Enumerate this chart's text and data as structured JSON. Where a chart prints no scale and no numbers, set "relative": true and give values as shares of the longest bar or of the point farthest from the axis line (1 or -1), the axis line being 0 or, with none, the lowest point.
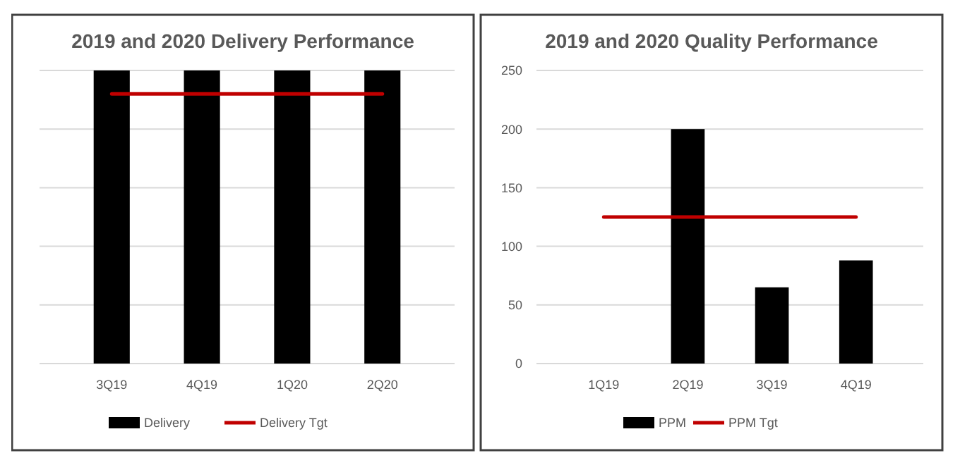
{
  "chart_data": [
    {
      "type": "bar",
      "title": "2019 and 2020 Delivery Performance",
      "categories": [
        "3Q19",
        "4Q19",
        "1Q20",
        "2Q20"
      ],
      "relative": true,
      "grid": true,
      "legend": "bottom",
      "series": [
        {
          "name": "Delivery",
          "color": "#000000",
          "values": [
            1,
            1,
            1,
            1
          ]
        },
        {
          "name": "Delivery Tgt",
          "type": "line",
          "color": "#c00000",
          "values": [
            0.92,
            0.92,
            0.92,
            0.92
          ]
        }
      ]
    },
    {
      "type": "bar",
      "title": "2019 and 2020 Quality Performance",
      "categories": [
        "1Q19",
        "2Q19",
        "3Q19",
        "4Q19"
      ],
      "ylim": [
        0,
        250
      ],
      "yticks": [
        0,
        50,
        100,
        150,
        200,
        250
      ],
      "grid": "y",
      "legend": "bottom",
      "series": [
        {
          "name": "PPM",
          "color": "#000000",
          "values": [
            0,
            200,
            65,
            88
          ]
        },
        {
          "name": "PPM Tgt",
          "type": "line",
          "color": "#c00000",
          "values": [
            125,
            125,
            125,
            125
          ]
        }
      ]
    }
  ]
}
